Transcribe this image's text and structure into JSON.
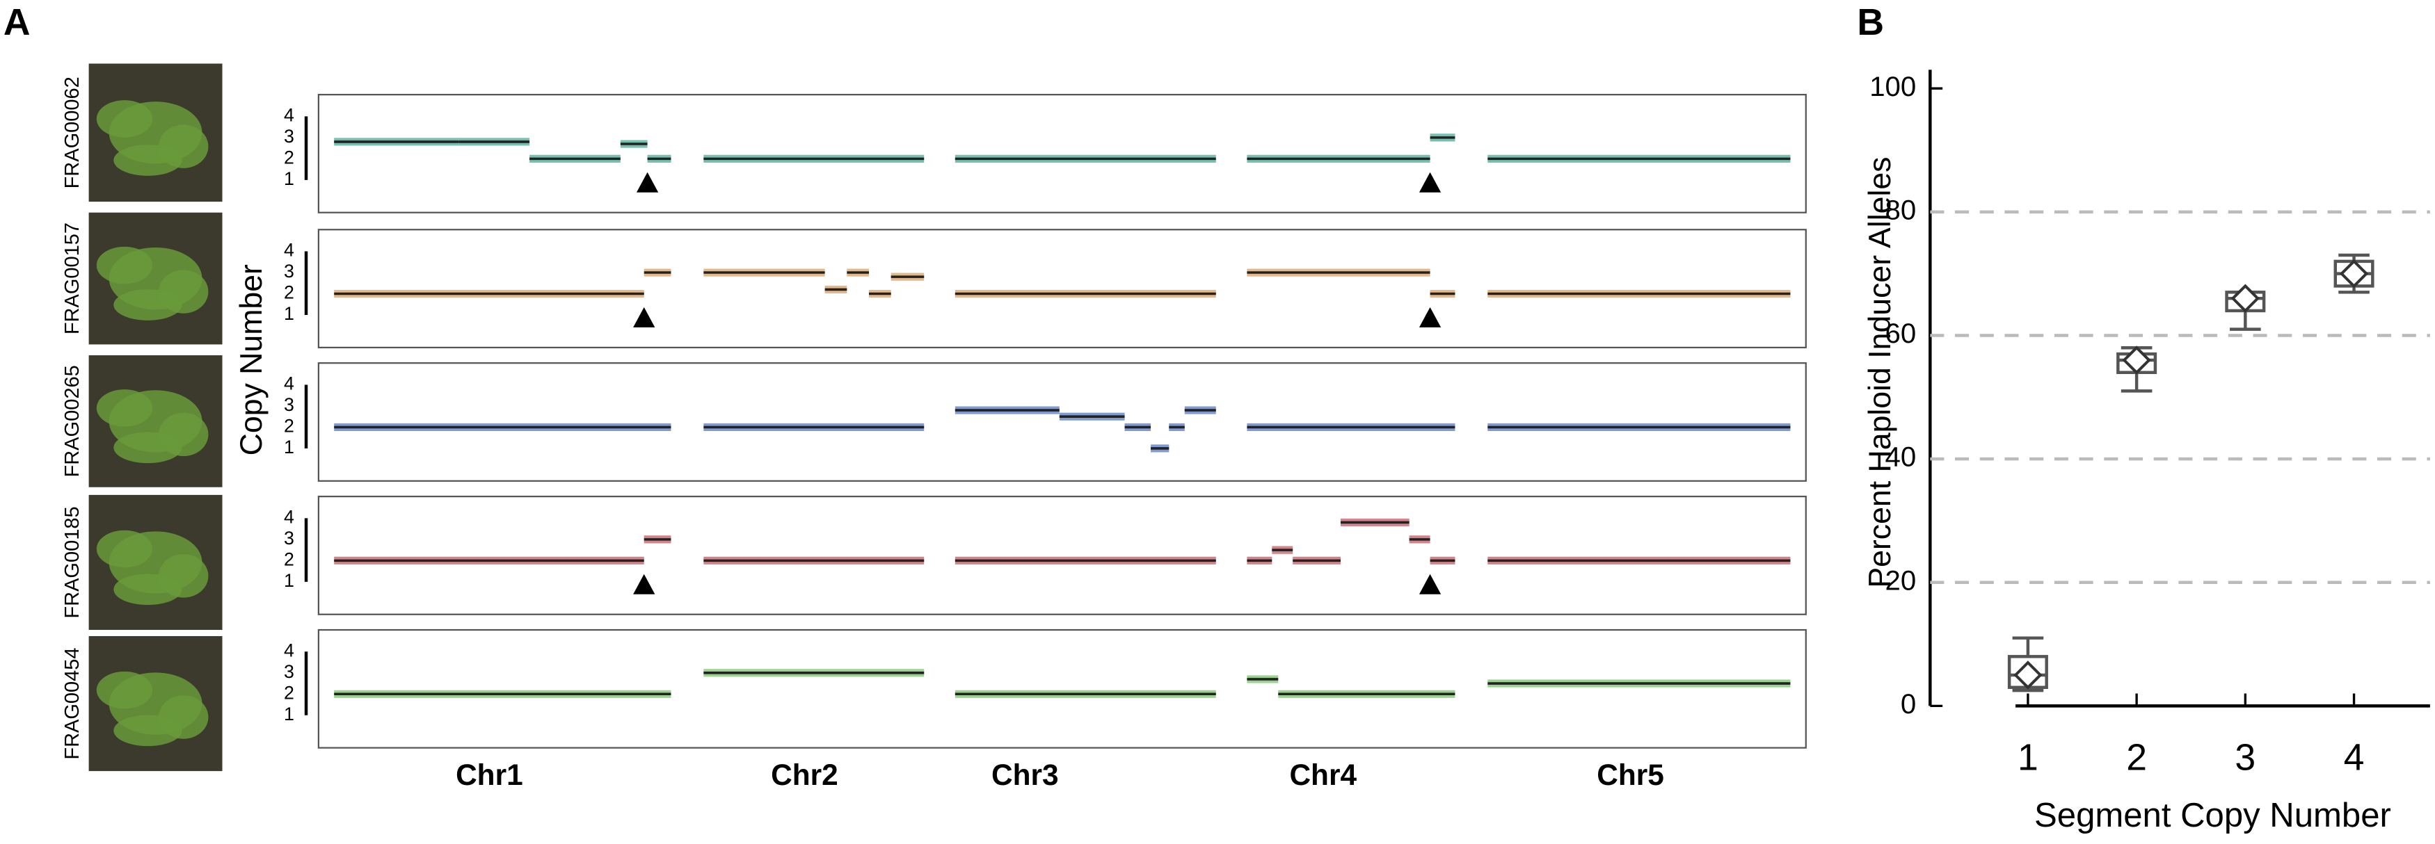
{
  "chart_data": [
    {
      "type": "copy_number_tracks",
      "panel_label": "A",
      "ylabel": "Copy Number",
      "ylim": [
        1,
        4
      ],
      "yticks": [
        1,
        2,
        3,
        4
      ],
      "xlim": [
        0,
        100
      ],
      "chromosomes": [
        "Chr1",
        "Chr2",
        "Chr3",
        "Chr4",
        "Chr5"
      ],
      "samples": [
        {
          "name": "FRAG00062",
          "color": "#3aa58f",
          "tracks": [
            {
              "segments": [
                {
                  "start": 0,
                  "end": 37,
                  "cn": 2.8
                },
                {
                  "start": 37,
                  "end": 58,
                  "cn": 2.8
                },
                {
                  "start": 58,
                  "end": 85,
                  "cn": 2
                },
                {
                  "start": 85,
                  "end": 93,
                  "cn": 2.7
                },
                {
                  "start": 93,
                  "end": 100,
                  "cn": 2
                }
              ],
              "marker": 93
            },
            {
              "segments": [
                {
                  "start": 0,
                  "end": 100,
                  "cn": 2
                }
              ]
            },
            {
              "segments": [
                {
                  "start": 0,
                  "end": 100,
                  "cn": 2
                }
              ]
            },
            {
              "segments": [
                {
                  "start": 0,
                  "end": 88,
                  "cn": 2
                },
                {
                  "start": 88,
                  "end": 100,
                  "cn": 3
                }
              ],
              "marker": 88
            },
            {
              "segments": [
                {
                  "start": 0,
                  "end": 100,
                  "cn": 2
                }
              ]
            }
          ]
        },
        {
          "name": "FRAG00157",
          "color": "#d99a55",
          "tracks": [
            {
              "segments": [
                {
                  "start": 0,
                  "end": 92,
                  "cn": 2
                },
                {
                  "start": 92,
                  "end": 100,
                  "cn": 3
                }
              ],
              "marker": 92
            },
            {
              "segments": [
                {
                  "start": 0,
                  "end": 55,
                  "cn": 3
                },
                {
                  "start": 55,
                  "end": 65,
                  "cn": 2.2
                },
                {
                  "start": 65,
                  "end": 75,
                  "cn": 3
                },
                {
                  "start": 75,
                  "end": 85,
                  "cn": 2
                },
                {
                  "start": 85,
                  "end": 100,
                  "cn": 2.8
                }
              ]
            },
            {
              "segments": [
                {
                  "start": 0,
                  "end": 100,
                  "cn": 2
                }
              ]
            },
            {
              "segments": [
                {
                  "start": 0,
                  "end": 88,
                  "cn": 3
                },
                {
                  "start": 88,
                  "end": 100,
                  "cn": 2
                }
              ],
              "marker": 88
            },
            {
              "segments": [
                {
                  "start": 0,
                  "end": 100,
                  "cn": 2
                }
              ]
            }
          ]
        },
        {
          "name": "FRAG00265",
          "color": "#4a6fc0",
          "tracks": [
            {
              "segments": [
                {
                  "start": 0,
                  "end": 100,
                  "cn": 2
                }
              ]
            },
            {
              "segments": [
                {
                  "start": 0,
                  "end": 100,
                  "cn": 2
                }
              ]
            },
            {
              "segments": [
                {
                  "start": 0,
                  "end": 40,
                  "cn": 2.8
                },
                {
                  "start": 40,
                  "end": 65,
                  "cn": 2.5
                },
                {
                  "start": 65,
                  "end": 75,
                  "cn": 2
                },
                {
                  "start": 75,
                  "end": 82,
                  "cn": 1
                },
                {
                  "start": 82,
                  "end": 88,
                  "cn": 2
                },
                {
                  "start": 88,
                  "end": 100,
                  "cn": 2.8
                }
              ]
            },
            {
              "segments": [
                {
                  "start": 0,
                  "end": 100,
                  "cn": 2
                }
              ]
            },
            {
              "segments": [
                {
                  "start": 0,
                  "end": 100,
                  "cn": 2
                }
              ]
            }
          ]
        },
        {
          "name": "FRAG00185",
          "color": "#c0505a",
          "tracks": [
            {
              "segments": [
                {
                  "start": 0,
                  "end": 92,
                  "cn": 2
                },
                {
                  "start": 92,
                  "end": 100,
                  "cn": 3
                }
              ],
              "marker": 92
            },
            {
              "segments": [
                {
                  "start": 0,
                  "end": 100,
                  "cn": 2
                }
              ]
            },
            {
              "segments": [
                {
                  "start": 0,
                  "end": 100,
                  "cn": 2
                }
              ]
            },
            {
              "segments": [
                {
                  "start": 0,
                  "end": 12,
                  "cn": 2
                },
                {
                  "start": 12,
                  "end": 22,
                  "cn": 2.5
                },
                {
                  "start": 22,
                  "end": 45,
                  "cn": 2
                },
                {
                  "start": 45,
                  "end": 78,
                  "cn": 3.8
                },
                {
                  "start": 78,
                  "end": 88,
                  "cn": 3
                },
                {
                  "start": 88,
                  "end": 100,
                  "cn": 2
                }
              ],
              "marker": 88
            },
            {
              "segments": [
                {
                  "start": 0,
                  "end": 100,
                  "cn": 2
                }
              ]
            }
          ]
        },
        {
          "name": "FRAG00454",
          "color": "#6fbf5f",
          "tracks": [
            {
              "segments": [
                {
                  "start": 0,
                  "end": 100,
                  "cn": 2
                }
              ]
            },
            {
              "segments": [
                {
                  "start": 0,
                  "end": 100,
                  "cn": 3
                }
              ]
            },
            {
              "segments": [
                {
                  "start": 0,
                  "end": 100,
                  "cn": 2
                }
              ]
            },
            {
              "segments": [
                {
                  "start": 0,
                  "end": 15,
                  "cn": 2.7
                },
                {
                  "start": 15,
                  "end": 100,
                  "cn": 2
                }
              ]
            },
            {
              "segments": [
                {
                  "start": 0,
                  "end": 100,
                  "cn": 2.5
                }
              ]
            }
          ]
        }
      ]
    },
    {
      "type": "box",
      "panel_label": "B",
      "ylabel": "Percent Haploid Inducer Alleles",
      "xlabel": "Segment Copy Number",
      "x": [
        1,
        2,
        3,
        4
      ],
      "xlim": [
        0.1,
        4.7
      ],
      "xticks": [
        1,
        2,
        3,
        4
      ],
      "ylim": [
        0,
        100
      ],
      "yticks": [
        0,
        20,
        40,
        60,
        80,
        100
      ],
      "grid": true,
      "color": "#555555",
      "min": [
        2.5,
        51,
        61,
        67
      ],
      "q1": [
        3,
        54,
        64,
        68
      ],
      "median": [
        5,
        56,
        66,
        70
      ],
      "q3": [
        8,
        57,
        67,
        72
      ],
      "max": [
        11,
        58,
        67,
        73
      ],
      "mean": [
        5,
        56,
        66,
        70
      ]
    }
  ]
}
